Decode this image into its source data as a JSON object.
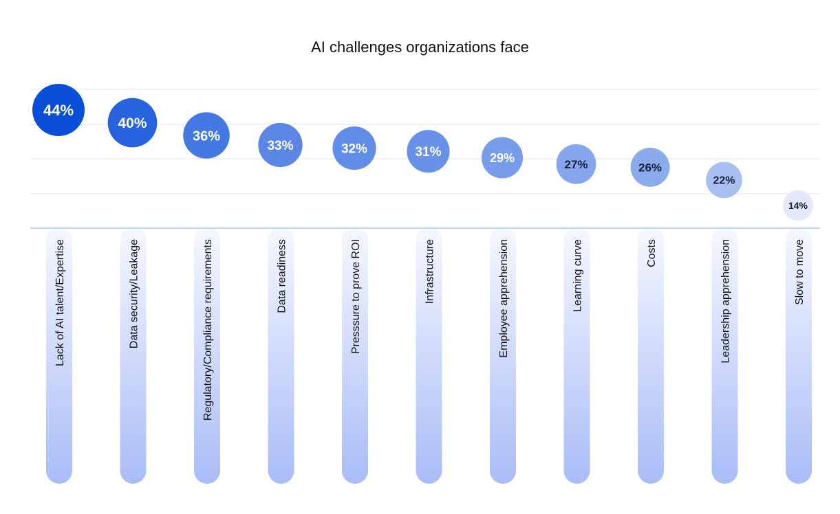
{
  "chart_data": {
    "type": "bubble-dot",
    "title": "AI challenges organizations face",
    "categories": [
      "Lack of AI talent/Expertise",
      "Data security/Leakage",
      "Regulatory/Compliance requirements",
      "Data readiness",
      "Presssure to prove ROI",
      "Infrastructure",
      "Employee apprehension",
      "Learning curve",
      "Costs",
      "Leadership apprehension",
      "Slow to move"
    ],
    "values": [
      44,
      40,
      36,
      33,
      32,
      31,
      29,
      27,
      26,
      22,
      14
    ],
    "value_labels": [
      "44%",
      "40%",
      "36%",
      "33%",
      "32%",
      "31%",
      "29%",
      "27%",
      "26%",
      "22%",
      "14%"
    ],
    "unit": "%",
    "grid": true,
    "colors": {
      "bubble_strong": "#0a4fd9",
      "bubble_light": "#e3e8fb",
      "stem_top": "#f6f8ff",
      "stem_bottom": "#a9bcf7",
      "gridline": "#e9ecf2",
      "baseline": "#c4d2f6"
    }
  }
}
